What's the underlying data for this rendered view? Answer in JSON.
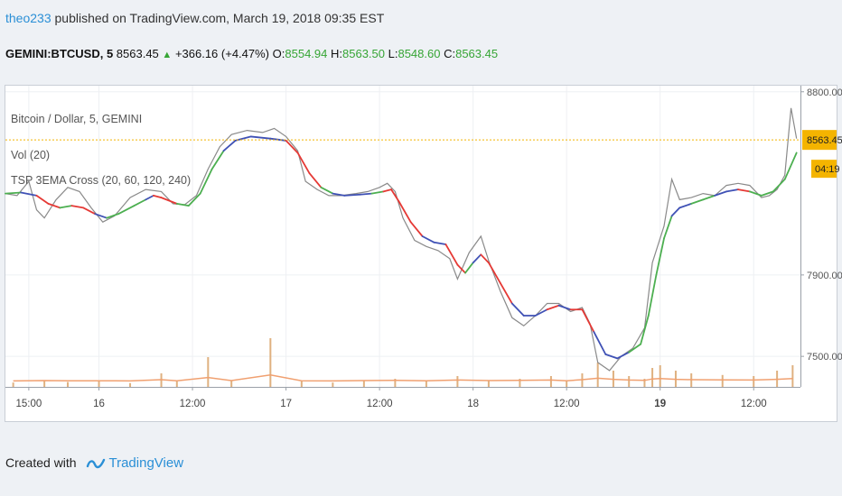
{
  "header": {
    "author": "theo233",
    "published_text": " published on TradingView.com, March 19, 2018 09:35 EST"
  },
  "quote": {
    "symbol": "GEMINI:BTCUSD, 5",
    "last": "8563.45",
    "change": "+366.16 (+4.47%)",
    "o_label": "O:",
    "o_value": "8554.94",
    "h_label": "H:",
    "h_value": "8563.50",
    "l_label": "L:",
    "l_value": "8548.60",
    "c_label": "C:",
    "c_value": "8563.45"
  },
  "legend": {
    "series_title": "Bitcoin / Dollar, 5, GEMINI",
    "volume": "Vol (20)",
    "indicator": "TSP 3EMA Cross (20, 60, 120, 240)"
  },
  "footer": {
    "created_with": "Created with",
    "brand": "TradingView"
  },
  "colors": {
    "price": "#8a8a8a",
    "ema_up": "#4caf50",
    "ema_down": "#e53935",
    "ema_flat": "#3f51b5",
    "volume": "#d9a36a",
    "last_price_tag": "#f4b400",
    "last_price_line": "#f4b400"
  },
  "chart_data": {
    "type": "line",
    "title": "Bitcoin / Dollar, 5, GEMINI",
    "y_axis_ticks": [
      {
        "value": 8800,
        "label": "8800.00"
      },
      {
        "value": 7900,
        "label": "7900.00"
      },
      {
        "value": 7500,
        "label": "7500.00"
      }
    ],
    "x_axis_ticks": [
      {
        "t": 15,
        "label": "15:00",
        "bold": false
      },
      {
        "t": 24,
        "label": "16",
        "bold": false
      },
      {
        "t": 36,
        "label": "12:00",
        "bold": false
      },
      {
        "t": 48,
        "label": "17",
        "bold": false
      },
      {
        "t": 60,
        "label": "12:00",
        "bold": false
      },
      {
        "t": 72,
        "label": "18",
        "bold": false
      },
      {
        "t": 84,
        "label": "12:00",
        "bold": false
      },
      {
        "t": 96,
        "label": "19",
        "bold": true
      },
      {
        "t": 108,
        "label": "12:00",
        "bold": false
      }
    ],
    "x_range_hours": [
      12,
      114
    ],
    "ylim": [
      7350,
      8830
    ],
    "last_price": {
      "value": 8563.45,
      "label": "8563.45",
      "countdown": "04:19"
    },
    "price_series": {
      "name": "Bitcoin / Dollar",
      "points": [
        [
          12,
          8300
        ],
        [
          13.5,
          8290
        ],
        [
          15,
          8360
        ],
        [
          16,
          8220
        ],
        [
          17,
          8180
        ],
        [
          18.5,
          8270
        ],
        [
          20,
          8330
        ],
        [
          21.5,
          8310
        ],
        [
          23,
          8230
        ],
        [
          24.5,
          8160
        ],
        [
          26,
          8190
        ],
        [
          28,
          8280
        ],
        [
          30,
          8320
        ],
        [
          32,
          8310
        ],
        [
          33.5,
          8250
        ],
        [
          35,
          8245
        ],
        [
          36.5,
          8290
        ],
        [
          38,
          8420
        ],
        [
          39.5,
          8530
        ],
        [
          41,
          8590
        ],
        [
          43,
          8610
        ],
        [
          45,
          8600
        ],
        [
          46.5,
          8620
        ],
        [
          48,
          8580
        ],
        [
          49.5,
          8510
        ],
        [
          50.5,
          8360
        ],
        [
          52,
          8320
        ],
        [
          53.5,
          8290
        ],
        [
          55,
          8290
        ],
        [
          57,
          8300
        ],
        [
          58.5,
          8310
        ],
        [
          60,
          8330
        ],
        [
          61,
          8350
        ],
        [
          62,
          8310
        ],
        [
          63,
          8180
        ],
        [
          64.5,
          8070
        ],
        [
          66,
          8040
        ],
        [
          67.5,
          8020
        ],
        [
          69,
          7980
        ],
        [
          70,
          7880
        ],
        [
          71.5,
          8010
        ],
        [
          73,
          8090
        ],
        [
          74,
          7970
        ],
        [
          75.5,
          7820
        ],
        [
          77,
          7690
        ],
        [
          78.5,
          7650
        ],
        [
          80,
          7700
        ],
        [
          81.5,
          7760
        ],
        [
          83,
          7760
        ],
        [
          84.5,
          7720
        ],
        [
          86,
          7740
        ],
        [
          87,
          7660
        ],
        [
          88,
          7470
        ],
        [
          89.5,
          7430
        ],
        [
          91,
          7500
        ],
        [
          92.5,
          7540
        ],
        [
          94,
          7640
        ],
        [
          95,
          7960
        ],
        [
          96.5,
          8140
        ],
        [
          97.5,
          8370
        ],
        [
          98.5,
          8270
        ],
        [
          100,
          8280
        ],
        [
          101.5,
          8300
        ],
        [
          103,
          8290
        ],
        [
          104.5,
          8340
        ],
        [
          106,
          8350
        ],
        [
          107.5,
          8340
        ],
        [
          109,
          8280
        ],
        [
          110,
          8290
        ],
        [
          111,
          8320
        ],
        [
          112,
          8390
        ],
        [
          112.8,
          8720
        ],
        [
          113.5,
          8570
        ]
      ]
    },
    "ema_series": {
      "name": "TSP 3EMA Cross (20, 60, 120, 240)",
      "points": [
        [
          12,
          8300,
          "up"
        ],
        [
          14,
          8305,
          "up"
        ],
        [
          16,
          8290,
          "flat"
        ],
        [
          17.5,
          8250,
          "down"
        ],
        [
          19,
          8230,
          "down"
        ],
        [
          20.5,
          8240,
          "up"
        ],
        [
          22,
          8230,
          "down"
        ],
        [
          23.5,
          8200,
          "down"
        ],
        [
          25,
          8180,
          "flat"
        ],
        [
          26.5,
          8200,
          "up"
        ],
        [
          28.5,
          8240,
          "up"
        ],
        [
          30,
          8270,
          "up"
        ],
        [
          31,
          8290,
          "flat"
        ],
        [
          32,
          8280,
          "down"
        ],
        [
          34,
          8250,
          "down"
        ],
        [
          35.5,
          8240,
          "up"
        ],
        [
          37,
          8300,
          "up"
        ],
        [
          38.5,
          8420,
          "up"
        ],
        [
          40,
          8510,
          "up"
        ],
        [
          41.5,
          8560,
          "flat"
        ],
        [
          43.5,
          8580,
          "flat"
        ],
        [
          46,
          8570,
          "flat"
        ],
        [
          48,
          8560,
          "flat"
        ],
        [
          49.5,
          8500,
          "down"
        ],
        [
          51,
          8400,
          "down"
        ],
        [
          52.5,
          8330,
          "down"
        ],
        [
          54,
          8300,
          "up"
        ],
        [
          55.5,
          8290,
          "flat"
        ],
        [
          57.5,
          8295,
          "flat"
        ],
        [
          59,
          8300,
          "flat"
        ],
        [
          60.5,
          8310,
          "up"
        ],
        [
          61.5,
          8320,
          "down"
        ],
        [
          62.5,
          8260,
          "down"
        ],
        [
          64,
          8160,
          "down"
        ],
        [
          65.5,
          8090,
          "down"
        ],
        [
          67,
          8060,
          "flat"
        ],
        [
          68.5,
          8050,
          "flat"
        ],
        [
          70,
          7950,
          "down"
        ],
        [
          71,
          7910,
          "down"
        ],
        [
          72,
          7960,
          "up"
        ],
        [
          73,
          8000,
          "flat"
        ],
        [
          74,
          7960,
          "down"
        ],
        [
          75.5,
          7860,
          "down"
        ],
        [
          77,
          7760,
          "down"
        ],
        [
          78.5,
          7700,
          "flat"
        ],
        [
          80,
          7700,
          "flat"
        ],
        [
          81.5,
          7730,
          "flat"
        ],
        [
          83,
          7750,
          "down"
        ],
        [
          84.5,
          7730,
          "flat"
        ],
        [
          86,
          7730,
          "down"
        ],
        [
          87.5,
          7620,
          "down"
        ],
        [
          89,
          7510,
          "flat"
        ],
        [
          90.5,
          7490,
          "flat"
        ],
        [
          92,
          7520,
          "flat"
        ],
        [
          93.5,
          7560,
          "up"
        ],
        [
          94.5,
          7700,
          "up"
        ],
        [
          95.5,
          7900,
          "up"
        ],
        [
          96.5,
          8080,
          "up"
        ],
        [
          97.5,
          8190,
          "up"
        ],
        [
          98.5,
          8230,
          "flat"
        ],
        [
          100,
          8250,
          "flat"
        ],
        [
          101.5,
          8270,
          "up"
        ],
        [
          103,
          8290,
          "up"
        ],
        [
          104.5,
          8310,
          "flat"
        ],
        [
          106,
          8320,
          "flat"
        ],
        [
          107.5,
          8310,
          "down"
        ],
        [
          109,
          8290,
          "up"
        ],
        [
          110.5,
          8310,
          "up"
        ],
        [
          112,
          8370,
          "up"
        ],
        [
          113.5,
          8500,
          "up"
        ]
      ]
    },
    "volume_series": {
      "name": "Vol (20)",
      "points": [
        [
          13,
          0.08
        ],
        [
          17,
          0.12
        ],
        [
          20,
          0.09
        ],
        [
          24,
          0.1
        ],
        [
          28,
          0.07
        ],
        [
          32,
          0.25
        ],
        [
          34,
          0.1
        ],
        [
          38,
          0.55
        ],
        [
          41,
          0.12
        ],
        [
          46,
          0.9
        ],
        [
          50,
          0.1
        ],
        [
          54,
          0.08
        ],
        [
          58,
          0.12
        ],
        [
          62,
          0.15
        ],
        [
          66,
          0.1
        ],
        [
          70,
          0.2
        ],
        [
          74,
          0.12
        ],
        [
          78,
          0.15
        ],
        [
          82,
          0.2
        ],
        [
          84,
          0.1
        ],
        [
          86,
          0.25
        ],
        [
          88,
          0.45
        ],
        [
          90,
          0.3
        ],
        [
          92,
          0.2
        ],
        [
          94,
          0.15
        ],
        [
          95,
          0.35
        ],
        [
          96,
          0.4
        ],
        [
          98,
          0.3
        ],
        [
          100,
          0.25
        ],
        [
          104,
          0.22
        ],
        [
          108,
          0.2
        ],
        [
          111,
          0.3
        ],
        [
          113,
          0.4
        ]
      ]
    }
  }
}
